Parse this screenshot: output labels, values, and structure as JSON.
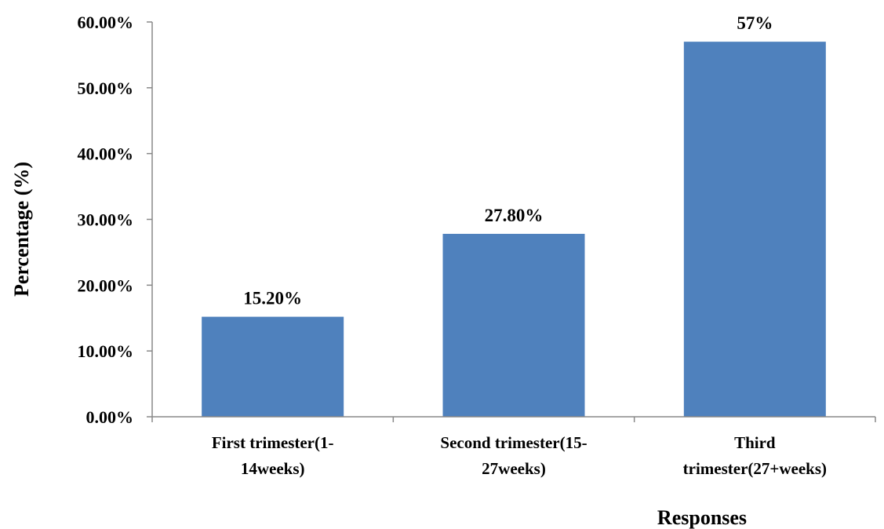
{
  "chart_data": {
    "type": "bar",
    "categories": [
      [
        "First trimester(1-",
        "14weeks)"
      ],
      [
        "Second trimester(15-",
        "27weeks)"
      ],
      [
        "Third",
        "trimester(27+weeks)"
      ]
    ],
    "values": [
      15.2,
      27.8,
      57
    ],
    "data_labels": [
      "15.20%",
      "27.80%",
      "57%"
    ],
    "xlabel": "Responses",
    "ylabel": "Percentage (%)",
    "ylim": [
      0,
      60
    ],
    "yticks": [
      0,
      10,
      20,
      30,
      40,
      50,
      60
    ],
    "ytick_labels": [
      "0.00%",
      "10.00%",
      "20.00%",
      "30.00%",
      "40.00%",
      "50.00%",
      "60.00%"
    ],
    "grid": false,
    "legend": "none",
    "bar_color": "#4F81BD"
  }
}
